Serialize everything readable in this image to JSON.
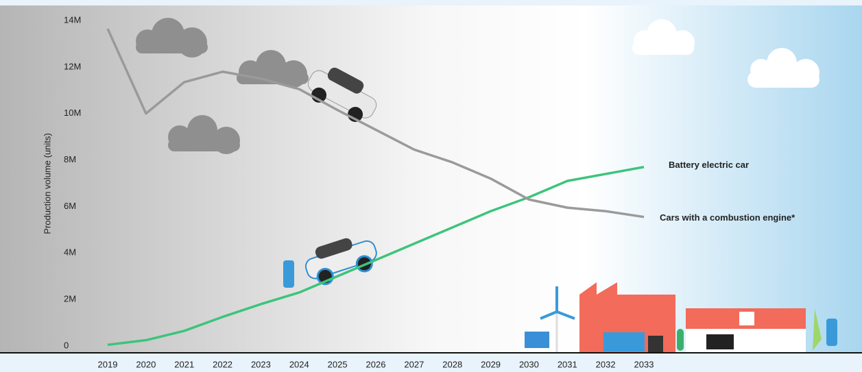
{
  "chart_data": {
    "type": "line",
    "y_label": "Production volume (units)",
    "categories": [
      "2019",
      "2020",
      "2021",
      "2022",
      "2023",
      "2024",
      "2025",
      "2026",
      "2027",
      "2028",
      "2029",
      "2030",
      "2031",
      "2032",
      "2033"
    ],
    "series": [
      {
        "name": "Battery electric car",
        "color": "#3cc47c",
        "values": [
          50000,
          250000,
          650000,
          1250000,
          1800000,
          2300000,
          3000000,
          3700000,
          4400000,
          5100000,
          5800000,
          6400000,
          7100000,
          7400000,
          7700000
        ]
      },
      {
        "name": "Cars with a combustion engine*",
        "color": "#9a9a9a",
        "values": [
          13650000,
          10000000,
          11350000,
          11800000,
          11500000,
          11050000,
          10150000,
          9300000,
          8450000,
          7900000,
          7200000,
          6300000,
          5950000,
          5800000,
          5550000
        ]
      }
    ],
    "ylim": [
      0,
      14000000
    ],
    "yticks": [
      0,
      {
        "value": 2000000,
        "label": "2M"
      },
      {
        "value": 4000000,
        "label": "4M"
      },
      {
        "value": 6000000,
        "label": "6M"
      },
      {
        "value": 8000000,
        "label": "8M"
      },
      {
        "value": 10000000,
        "label": "10M"
      },
      {
        "value": 12000000,
        "label": "12M"
      },
      {
        "value": 14000000,
        "label": "14M"
      }
    ]
  }
}
